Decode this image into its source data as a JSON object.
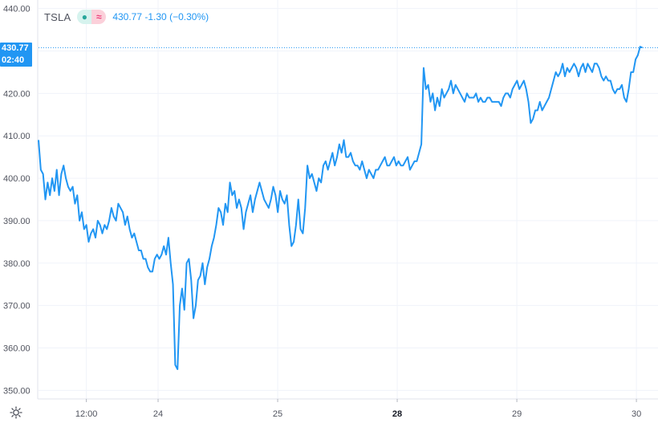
{
  "legend": {
    "symbol": "TSLA",
    "last": "430.77",
    "change": "-1.30",
    "change_pct": "(−0.30%)",
    "status_icon": "market-open-dot-icon",
    "mode_icon": "wave-icon"
  },
  "price_tag": {
    "price": "430.77",
    "countdown": "02:40"
  },
  "colors": {
    "line": "#2196f3",
    "grid": "#f0f3fa",
    "tag": "#2196f3"
  },
  "chart_data": {
    "type": "line",
    "title": "",
    "xlabel": "",
    "ylabel": "",
    "ylim": [
      348,
      442
    ],
    "y_ticks": [
      "440.00",
      "430.00",
      "420.00",
      "410.00",
      "400.00",
      "390.00",
      "380.00",
      "370.00",
      "360.00",
      "350.00"
    ],
    "y_tick_values": [
      440,
      430,
      420,
      410,
      400,
      390,
      380,
      370,
      360,
      350
    ],
    "x_ticks": [
      {
        "label": "12:00",
        "x": 4,
        "bold": false
      },
      {
        "label": "24",
        "x": 10,
        "bold": false
      },
      {
        "label": "25",
        "x": 20,
        "bold": false
      },
      {
        "label": "28",
        "x": 30,
        "bold": true
      },
      {
        "label": "29",
        "x": 40,
        "bold": false
      },
      {
        "label": "30",
        "x": 50,
        "bold": false
      }
    ],
    "xlim": [
      0,
      51
    ],
    "grid": true,
    "last_value": 430.77,
    "series": [
      {
        "values": [
          409,
          402,
          401,
          395,
          399,
          396,
          400,
          397,
          402,
          396,
          401,
          403,
          400,
          398,
          397,
          398,
          394,
          396,
          390,
          392,
          388,
          389,
          385,
          387,
          388,
          386,
          390,
          389,
          387,
          389,
          388,
          390,
          393,
          391,
          390,
          394,
          393,
          392,
          389,
          391,
          388,
          386,
          387,
          385,
          383,
          383,
          381,
          381,
          379,
          378,
          378,
          381,
          382,
          381,
          382,
          384,
          382,
          386,
          380,
          375,
          356,
          355,
          370,
          374,
          369,
          380,
          381,
          376,
          367,
          370,
          376,
          377,
          380,
          375,
          379,
          381,
          384,
          386,
          389,
          393,
          392,
          389,
          394,
          392,
          399,
          396,
          397,
          393,
          395,
          393,
          388,
          392,
          394,
          396,
          392,
          395,
          397,
          399,
          397,
          395,
          394,
          393,
          395,
          398,
          396,
          392,
          397,
          395,
          394,
          396,
          389,
          384,
          385,
          389,
          395,
          388,
          387,
          393,
          403,
          400,
          401,
          399,
          397,
          400,
          399,
          403,
          404,
          402,
          404,
          406,
          403,
          405,
          408,
          406,
          409,
          405,
          405,
          406,
          404,
          403,
          403,
          402,
          404,
          402,
          400,
          402,
          401,
          400,
          402,
          402,
          403,
          404,
          405,
          403,
          403,
          404,
          405,
          403,
          404,
          403,
          403,
          404,
          405,
          402,
          403,
          404,
          404,
          406,
          408,
          426,
          421,
          422,
          418,
          420,
          416,
          419,
          417,
          421,
          419,
          420,
          421,
          423,
          420,
          422,
          421,
          420,
          419,
          418,
          420,
          419,
          419,
          419,
          420,
          418,
          419,
          418,
          418,
          419,
          419,
          418,
          418,
          418,
          418,
          417,
          419,
          420,
          420,
          419,
          421,
          422,
          423,
          421,
          422,
          423,
          421,
          418,
          413,
          414,
          416,
          416,
          418,
          416,
          417,
          418,
          419,
          421,
          423,
          425,
          424,
          425,
          427,
          424,
          426,
          425,
          426,
          427,
          426,
          424,
          426,
          427,
          425,
          427,
          426,
          425,
          427,
          427,
          426,
          424,
          423,
          424,
          423,
          423,
          421,
          420,
          421,
          421,
          422,
          419,
          418,
          421,
          425,
          425,
          428,
          429,
          431,
          430.77
        ]
      }
    ]
  }
}
